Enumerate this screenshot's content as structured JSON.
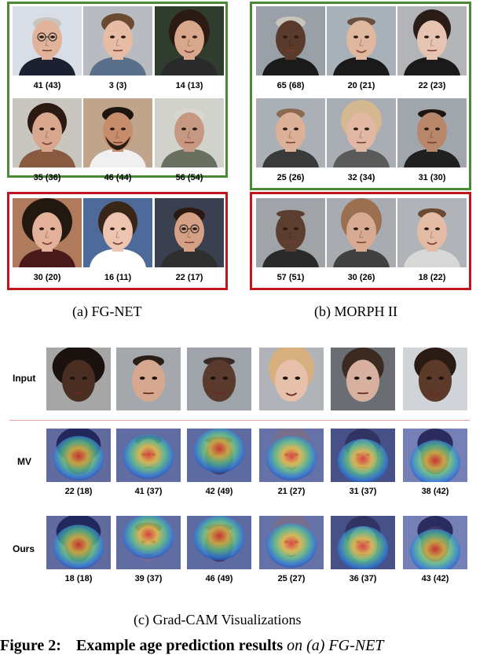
{
  "fgnet": {
    "caption": "(a)  FG-NET",
    "labels": [
      "41 (43)",
      "3 (3)",
      "14 (13)",
      "35 (36)",
      "46 (44)",
      "56 (54)",
      "30 (20)",
      "16 (11)",
      "22 (17)"
    ]
  },
  "morph": {
    "caption": "(b)  MORPH II",
    "labels": [
      "65 (68)",
      "20 (21)",
      "22 (23)",
      "25 (26)",
      "32 (34)",
      "31 (30)",
      "57 (51)",
      "30 (26)",
      "18 (22)"
    ]
  },
  "gradcam": {
    "caption": "(c)  Grad-CAM Visualizations",
    "rows": {
      "input": "Input",
      "mv": "MV",
      "ours": "Ours"
    },
    "mv_labels": [
      "22 (18)",
      "41 (37)",
      "42 (49)",
      "21 (27)",
      "31 (37)",
      "38 (42)"
    ],
    "ours_labels": [
      "18 (18)",
      "39 (37)",
      "46 (49)",
      "25 (27)",
      "36 (37)",
      "43 (42)"
    ]
  },
  "figure_caption": {
    "lead": "Figure 2:",
    "bold": "Example age prediction results",
    "italic": "on (a) FG-NET"
  },
  "colors": {
    "correct_frame": "#4a8a36",
    "wrong_frame": "#c0161d"
  }
}
